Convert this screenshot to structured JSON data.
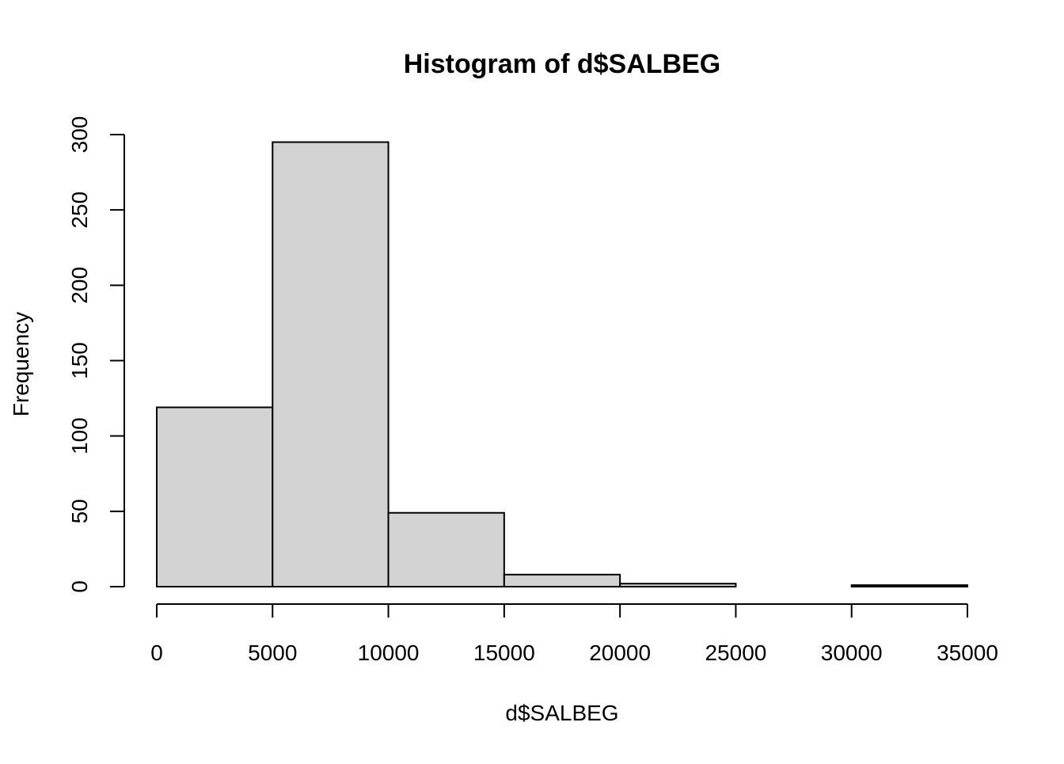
{
  "chart_data": {
    "type": "bar",
    "title": "Histogram of d$SALBEG",
    "xlabel": "d$SALBEG",
    "ylabel": "Frequency",
    "bins": [
      {
        "from": 0,
        "to": 5000,
        "count": 119
      },
      {
        "from": 5000,
        "to": 10000,
        "count": 295
      },
      {
        "from": 10000,
        "to": 15000,
        "count": 49
      },
      {
        "from": 15000,
        "to": 20000,
        "count": 8
      },
      {
        "from": 20000,
        "to": 25000,
        "count": 2
      },
      {
        "from": 25000,
        "to": 30000,
        "count": 0
      },
      {
        "from": 30000,
        "to": 35000,
        "count": 1
      }
    ],
    "xlim": [
      0,
      35000
    ],
    "ylim": [
      0,
      300
    ],
    "xticks": [
      "0",
      "5000",
      "10000",
      "15000",
      "20000",
      "25000",
      "30000",
      "35000"
    ],
    "yticks": [
      "0",
      "50",
      "100",
      "150",
      "200",
      "250",
      "300"
    ],
    "bar_color": "#d3d3d3",
    "border_color": "#000000",
    "grid": false,
    "legend": "none"
  }
}
